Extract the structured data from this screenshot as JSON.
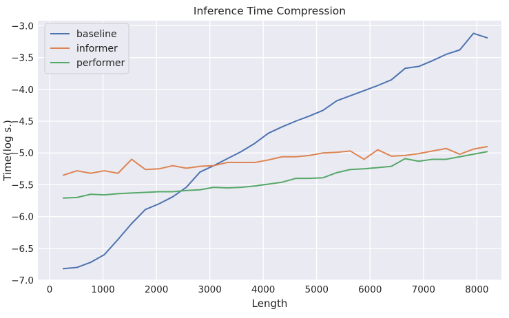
{
  "chart_data": {
    "type": "line",
    "title": "Inference Time Compression",
    "xlabel": "Length",
    "ylabel": "Time(log s.)",
    "xlim": [
      -220,
      8460
    ],
    "ylim": [
      -7.0,
      -2.92
    ],
    "xticks": [
      0,
      1000,
      2000,
      3000,
      4000,
      5000,
      6000,
      7000,
      8000
    ],
    "xtick_labels": [
      "0",
      "1000",
      "2000",
      "3000",
      "4000",
      "5000",
      "6000",
      "7000",
      "8000"
    ],
    "yticks": [
      -7.0,
      -6.5,
      -6.0,
      -5.5,
      -5.0,
      -4.5,
      -4.0,
      -3.5,
      -3.0
    ],
    "ytick_labels": [
      "−7.0",
      "−6.5",
      "−6.0",
      "−5.5",
      "−5.0",
      "−4.5",
      "−4.0",
      "−3.5",
      "−3.0"
    ],
    "grid": true,
    "legend_position": "top-left",
    "background": "#eaeaf2",
    "grid_color": "#ffffff",
    "x": [
      256,
      512,
      768,
      1024,
      1280,
      1536,
      1792,
      2048,
      2304,
      2560,
      2816,
      3072,
      3328,
      3584,
      3840,
      4096,
      4352,
      4608,
      4864,
      5120,
      5376,
      5632,
      5888,
      6144,
      6400,
      6656,
      6912,
      7168,
      7424,
      7680,
      7936,
      8192
    ],
    "series": [
      {
        "name": "baseline",
        "color": "#4c72b0",
        "values": [
          -6.82,
          -6.8,
          -6.72,
          -6.6,
          -6.36,
          -6.11,
          -5.89,
          -5.8,
          -5.69,
          -5.54,
          -5.3,
          -5.2,
          -5.09,
          -4.98,
          -4.85,
          -4.69,
          -4.59,
          -4.5,
          -4.42,
          -4.33,
          -4.18,
          -4.1,
          -4.02,
          -3.94,
          -3.85,
          -3.67,
          -3.64,
          -3.55,
          -3.45,
          -3.38,
          -3.12,
          -3.19
        ]
      },
      {
        "name": "informer",
        "color": "#dd8452",
        "values": [
          -5.35,
          -5.28,
          -5.32,
          -5.28,
          -5.32,
          -5.1,
          -5.26,
          -5.25,
          -5.2,
          -5.24,
          -5.21,
          -5.2,
          -5.15,
          -5.15,
          -5.15,
          -5.11,
          -5.06,
          -5.06,
          -5.04,
          -5.0,
          -4.99,
          -4.97,
          -5.1,
          -4.95,
          -5.05,
          -5.04,
          -5.01,
          -4.97,
          -4.93,
          -5.02,
          -4.94,
          -4.9
        ]
      },
      {
        "name": "performer",
        "color": "#55a868",
        "values": [
          -5.71,
          -5.7,
          -5.65,
          -5.66,
          -5.64,
          -5.63,
          -5.62,
          -5.61,
          -5.61,
          -5.59,
          -5.58,
          -5.54,
          -5.55,
          -5.54,
          -5.52,
          -5.49,
          -5.46,
          -5.4,
          -5.4,
          -5.39,
          -5.31,
          -5.26,
          -5.25,
          -5.23,
          -5.21,
          -5.09,
          -5.13,
          -5.1,
          -5.1,
          -5.06,
          -5.02,
          -4.98
        ]
      }
    ]
  }
}
